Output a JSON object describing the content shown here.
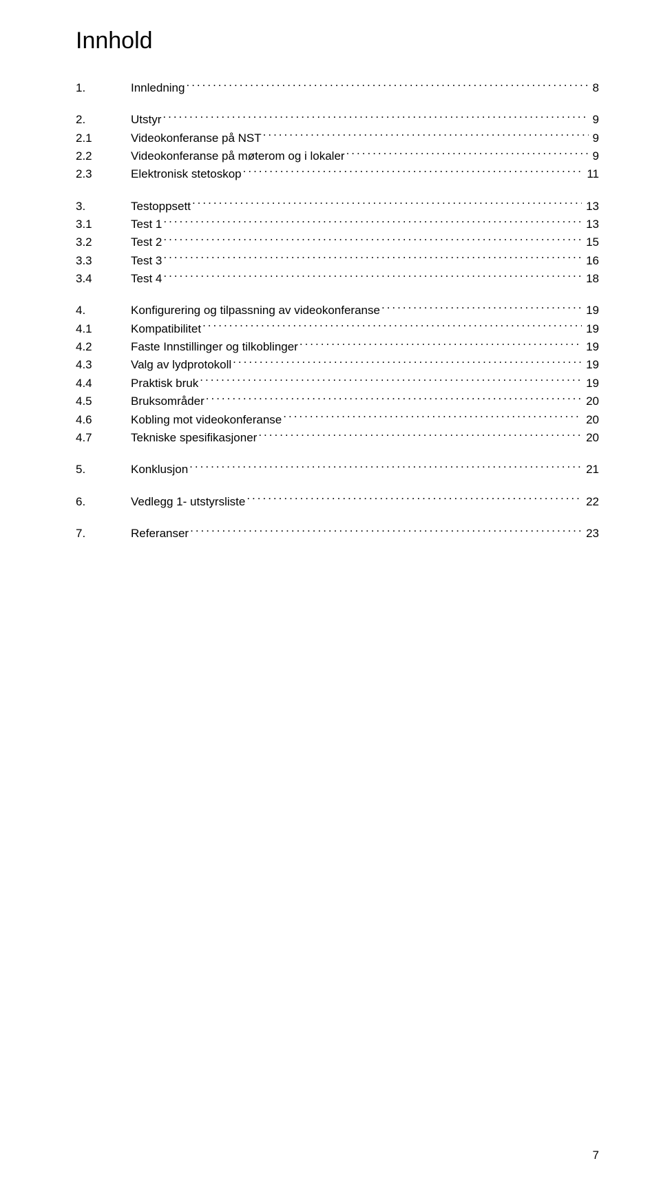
{
  "title": "Innhold",
  "pageNumber": "7",
  "toc": [
    {
      "section": [
        {
          "level": 1,
          "num": "1.",
          "label": "Innledning",
          "page": "8"
        }
      ]
    },
    {
      "section": [
        {
          "level": 1,
          "num": "2.",
          "label": "Utstyr",
          "page": "9"
        },
        {
          "level": 2,
          "num": "2.1",
          "label": "Videokonferanse på NST",
          "page": "9"
        },
        {
          "level": 2,
          "num": "2.2",
          "label": "Videokonferanse på møterom og i lokaler",
          "page": "9"
        },
        {
          "level": 2,
          "num": "2.3",
          "label": "Elektronisk stetoskop",
          "page": "11"
        }
      ]
    },
    {
      "section": [
        {
          "level": 1,
          "num": "3.",
          "label": "Testoppsett",
          "page": "13"
        },
        {
          "level": 2,
          "num": "3.1",
          "label": "Test 1",
          "page": "13"
        },
        {
          "level": 2,
          "num": "3.2",
          "label": "Test 2",
          "page": "15"
        },
        {
          "level": 2,
          "num": "3.3",
          "label": "Test 3",
          "page": "16"
        },
        {
          "level": 2,
          "num": "3.4",
          "label": "Test 4",
          "page": "18"
        }
      ]
    },
    {
      "section": [
        {
          "level": 1,
          "num": "4.",
          "label": "Konfigurering og tilpassning av videokonferanse",
          "page": "19"
        },
        {
          "level": 2,
          "num": "4.1",
          "label": "Kompatibilitet",
          "page": "19"
        },
        {
          "level": 2,
          "num": "4.2",
          "label": "Faste Innstillinger og tilkoblinger",
          "page": "19"
        },
        {
          "level": 2,
          "num": "4.3",
          "label": "Valg av lydprotokoll",
          "page": "19"
        },
        {
          "level": 2,
          "num": "4.4",
          "label": "Praktisk bruk",
          "page": "19"
        },
        {
          "level": 2,
          "num": "4.5",
          "label": "Bruksområder",
          "page": "20"
        },
        {
          "level": 2,
          "num": "4.6",
          "label": "Kobling mot videokonferanse",
          "page": "20"
        },
        {
          "level": 2,
          "num": "4.7",
          "label": "Tekniske spesifikasjoner",
          "page": "20"
        }
      ]
    },
    {
      "section": [
        {
          "level": 1,
          "num": "5.",
          "label": "Konklusjon",
          "page": "21"
        }
      ]
    },
    {
      "section": [
        {
          "level": 1,
          "num": "6.",
          "label": "Vedlegg 1- utstyrsliste",
          "page": "22"
        }
      ]
    },
    {
      "section": [
        {
          "level": 1,
          "num": "7.",
          "label": "Referanser",
          "page": "23"
        }
      ]
    }
  ]
}
